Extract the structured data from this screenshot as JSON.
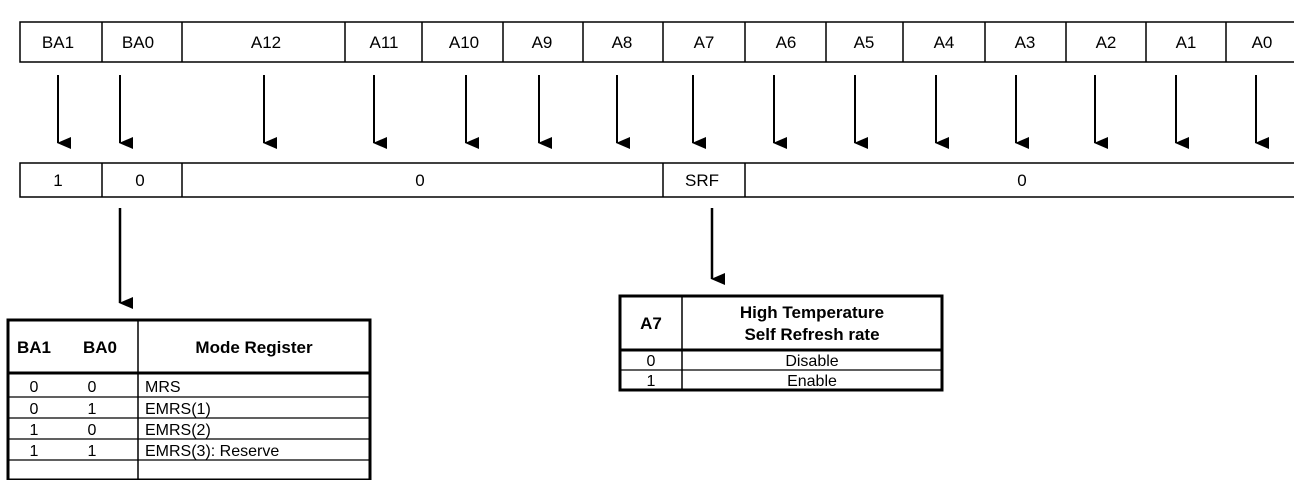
{
  "address_pins": [
    "BA1",
    "BA0",
    "A12",
    "A11",
    "A10",
    "A9",
    "A8",
    "A7",
    "A6",
    "A5",
    "A4",
    "A3",
    "A2",
    "A1",
    "A0"
  ],
  "register_fields": [
    "1",
    "0",
    "0",
    "SRF",
    "0"
  ],
  "mode_table": {
    "headers": [
      "BA1",
      "BA0",
      "Mode Register"
    ],
    "rows": [
      [
        "0",
        "0",
        "MRS"
      ],
      [
        "0",
        "1",
        "EMRS(1)"
      ],
      [
        "1",
        "0",
        "EMRS(2)"
      ],
      [
        "1",
        "1",
        "EMRS(3): Reserve"
      ]
    ]
  },
  "srf_table": {
    "headers": [
      "A7",
      "High Temperature",
      "Self Refresh rate"
    ],
    "rows": [
      [
        "0",
        "Disable"
      ],
      [
        "1",
        "Enable"
      ]
    ]
  }
}
